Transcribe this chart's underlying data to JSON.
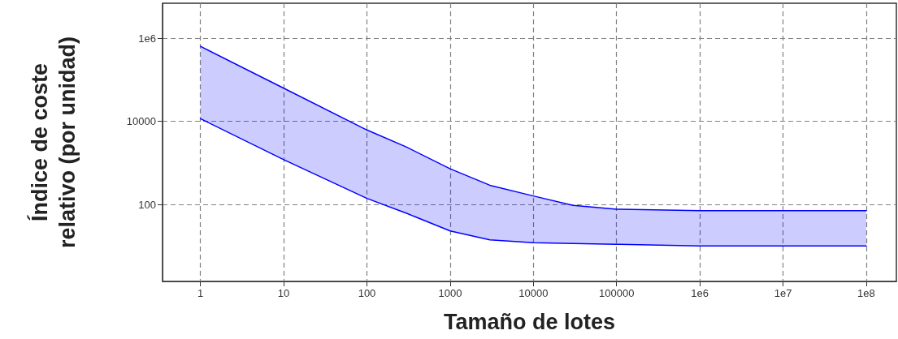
{
  "chart_data": {
    "type": "line",
    "xlabel": "Tamaño de lotes",
    "ylabel": "Índice de coste\nrelativo (por unidad)",
    "x": [
      1,
      10,
      100,
      300,
      1000,
      3000,
      10000,
      30000,
      100000,
      1000000,
      10000000,
      100000000
    ],
    "series": [
      {
        "color": "#0000ff",
        "values": [
          640000,
          63000,
          6200,
          2400,
          720,
          290,
          160,
          95,
          77,
          71,
          71,
          71
        ],
        "lower": [
          11600,
          1200,
          140,
          61,
          23,
          14,
          12,
          11.5,
          11,
          10,
          10,
          10
        ],
        "upper": [
          640000,
          63000,
          6200,
          2400,
          720,
          290,
          160,
          95,
          77,
          71,
          71,
          71
        ]
      },
      {
        "color": "#0000ff",
        "values": [
          11600,
          1200,
          140,
          61,
          23,
          14,
          12,
          11.5,
          11,
          10,
          10,
          10
        ]
      }
    ],
    "log": "xy",
    "xlim": [
      0.35,
      230000000
    ],
    "ylim": [
      1.4,
      7000000
    ],
    "xticks": [
      1,
      10,
      100,
      1000,
      10000,
      100000,
      {
        "value": 1000000,
        "label": "1e6"
      },
      {
        "value": 10000000,
        "label": "1e7"
      },
      {
        "value": 100000000,
        "label": "1e8"
      }
    ],
    "yticks": [
      100,
      10000,
      {
        "value": 1000000,
        "label": "1e6"
      }
    ],
    "grid": true,
    "line_style": "solid",
    "marker": "none"
  }
}
